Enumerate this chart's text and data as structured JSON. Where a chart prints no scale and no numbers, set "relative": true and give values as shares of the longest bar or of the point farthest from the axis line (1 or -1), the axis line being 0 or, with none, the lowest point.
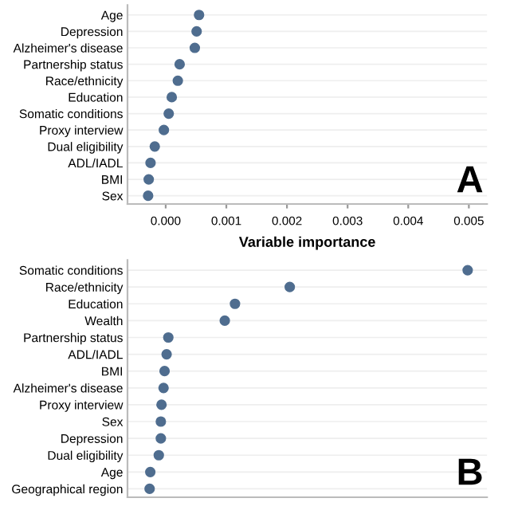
{
  "chart_data": [
    {
      "type": "scatter",
      "orientation": "horizontal",
      "xlabel": "Variable importance",
      "categories": [
        "Age",
        "Depression",
        "Alzheimer's disease",
        "Partnership status",
        "Race/ethnicity",
        "Education",
        "Somatic conditions",
        "Proxy interview",
        "Dual eligibility",
        "ADL/IADL",
        "BMI",
        "Sex"
      ],
      "series": [
        {
          "color": "#4f6d8f",
          "values": [
            0.00055,
            0.00051,
            0.00048,
            0.00023,
            0.0002,
            0.0001,
            5e-05,
            -3e-05,
            -0.00018,
            -0.00025,
            -0.00028,
            -0.00029
          ]
        }
      ],
      "xlim": [
        -0.00063,
        0.0053
      ],
      "xticks": [
        {
          "value": 0,
          "label": "0.000"
        },
        {
          "value": 0.001,
          "label": "0.001"
        },
        {
          "value": 0.002,
          "label": "0.002"
        },
        {
          "value": 0.003,
          "label": "0.003"
        },
        {
          "value": 0.004,
          "label": "0.004"
        },
        {
          "value": 0.005,
          "label": "0.005"
        }
      ],
      "grid": "y",
      "marker": "circle",
      "annotations": [
        "A"
      ]
    },
    {
      "type": "scatter",
      "orientation": "horizontal",
      "relative": true,
      "tick_labels": "y",
      "categories": [
        "Somatic conditions",
        "Race/ethnicity",
        "Education",
        "Wealth",
        "Partnership status",
        "ADL/IADL",
        "BMI",
        "Alzheimer's disease",
        "Proxy interview",
        "Sex",
        "Depression",
        "Dual eligibility",
        "Age",
        "Geographical region"
      ],
      "series": [
        {
          "color": "#4f6d8f",
          "values": [
            1,
            0.477,
            0.316,
            0.286,
            0.12,
            0.115,
            0.109,
            0.106,
            0.1,
            0.098,
            0.098,
            0.092,
            0.067,
            0.065
          ]
        }
      ],
      "grid": "y",
      "marker": "circle",
      "annotations": [
        "B"
      ]
    }
  ]
}
